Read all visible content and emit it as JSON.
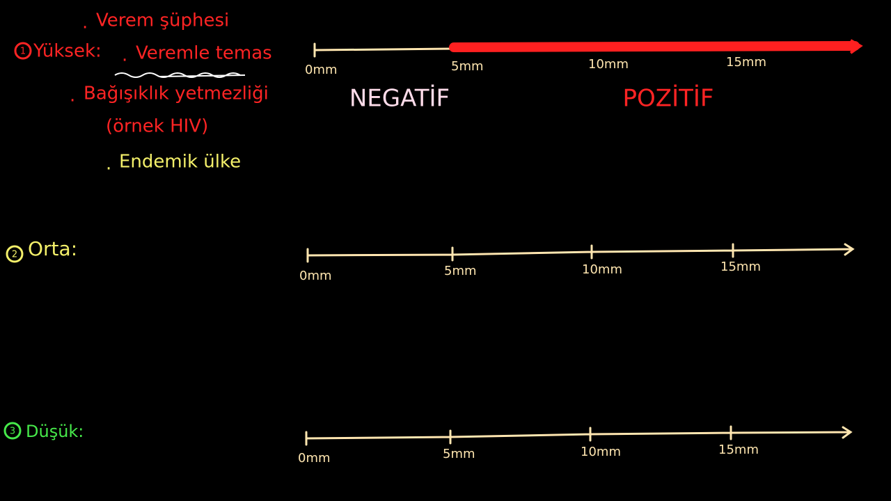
{
  "levels": [
    {
      "number": "1",
      "label": "Yüksek:",
      "items": [
        "Verem şüphesi",
        "Veremle temas",
        "Bağışıklık yetmezliği",
        "(örnek HIV)",
        "Endemik ülke"
      ],
      "ticks": [
        "0mm",
        "5mm",
        "10mm",
        "15mm"
      ],
      "regions": [
        "NEGATİF",
        "POZİTİF"
      ]
    },
    {
      "number": "2",
      "label": "Orta:",
      "ticks": [
        "0mm",
        "5mm",
        "10mm",
        "15mm"
      ]
    },
    {
      "number": "3",
      "label": "Düşük:",
      "ticks": [
        "0mm",
        "5mm",
        "10mm",
        "15mm"
      ]
    }
  ]
}
